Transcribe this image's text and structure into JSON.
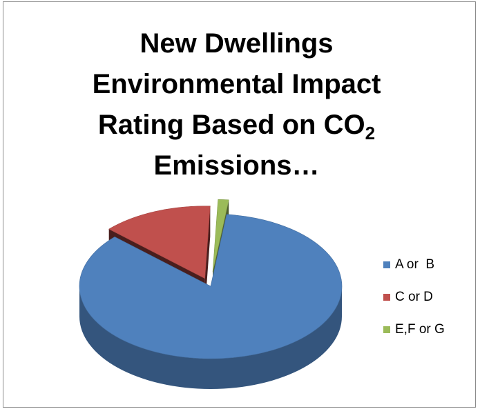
{
  "chart_data": {
    "type": "pie",
    "title": {
      "line1": "New Dwellings",
      "line2": "Environmental Impact",
      "line3_main": "Rating Based on CO",
      "line3_sub": "2",
      "line4": "Emissions…"
    },
    "slices": [
      {
        "name": "A or  B",
        "value": 85.0,
        "color": "#4f81bd"
      },
      {
        "name": "C or D",
        "value": 13.7,
        "color": "#c0504d"
      },
      {
        "name": "E,F or G",
        "value": 1.3,
        "color": "#9bbb59"
      }
    ],
    "legend_position": "right",
    "style": "3d-pie-exploded"
  }
}
